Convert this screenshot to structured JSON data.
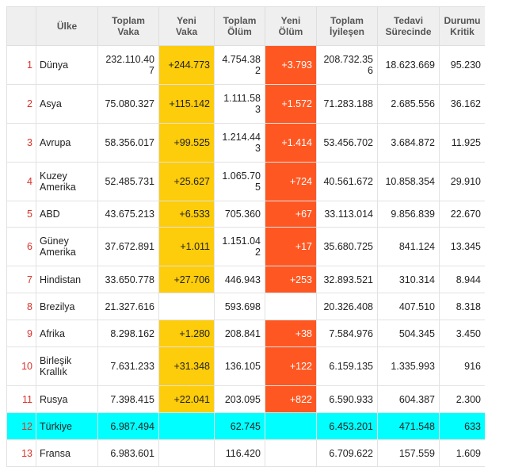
{
  "headers": {
    "country": "Ülke",
    "total_cases": [
      "Toplam",
      "Vaka"
    ],
    "new_cases": [
      "Yeni",
      "Vaka"
    ],
    "total_deaths": [
      "Toplam",
      "Ölüm"
    ],
    "new_deaths": [
      "Yeni",
      "Ölüm"
    ],
    "total_recovered": [
      "Toplam",
      "İyileşen"
    ],
    "in_treatment": [
      "Tedavi",
      "Sürecinde"
    ],
    "critical": [
      "Durumu",
      "Kritik"
    ]
  },
  "rows": [
    {
      "idx": "1",
      "name": [
        "Dünya"
      ],
      "total_cases": [
        "232.110.40",
        "7"
      ],
      "new_cases": "+244.773",
      "total_deaths": [
        "4.754.38",
        "2"
      ],
      "new_deaths": "+3.793",
      "total_recovered": [
        "208.732.35",
        "6"
      ],
      "in_treatment": "18.623.669",
      "critical": "95.230"
    },
    {
      "idx": "2",
      "name": [
        "Asya"
      ],
      "total_cases": [
        "75.080.327"
      ],
      "new_cases": "+115.142",
      "total_deaths": [
        "1.111.58",
        "3"
      ],
      "new_deaths": "+1.572",
      "total_recovered": [
        "71.283.188"
      ],
      "in_treatment": "2.685.556",
      "critical": "36.162"
    },
    {
      "idx": "3",
      "name": [
        "Avrupa"
      ],
      "total_cases": [
        "58.356.017"
      ],
      "new_cases": "+99.525",
      "total_deaths": [
        "1.214.44",
        "3"
      ],
      "new_deaths": "+1.414",
      "total_recovered": [
        "53.456.702"
      ],
      "in_treatment": "3.684.872",
      "critical": "11.925"
    },
    {
      "idx": "4",
      "name": [
        "Kuzey",
        "Amerika"
      ],
      "total_cases": [
        "52.485.731"
      ],
      "new_cases": "+25.627",
      "total_deaths": [
        "1.065.70",
        "5"
      ],
      "new_deaths": "+724",
      "total_recovered": [
        "40.561.672"
      ],
      "in_treatment": "10.858.354",
      "critical": "29.910"
    },
    {
      "idx": "5",
      "name": [
        "ABD"
      ],
      "total_cases": [
        "43.675.213"
      ],
      "new_cases": "+6.533",
      "total_deaths": [
        "705.360"
      ],
      "new_deaths": "+67",
      "total_recovered": [
        "33.113.014"
      ],
      "in_treatment": "9.856.839",
      "critical": "22.670"
    },
    {
      "idx": "6",
      "name": [
        "Güney",
        "Amerika"
      ],
      "total_cases": [
        "37.672.891"
      ],
      "new_cases": "+1.011",
      "total_deaths": [
        "1.151.04",
        "2"
      ],
      "new_deaths": "+17",
      "total_recovered": [
        "35.680.725"
      ],
      "in_treatment": "841.124",
      "critical": "13.345"
    },
    {
      "idx": "7",
      "name": [
        "Hindistan"
      ],
      "total_cases": [
        "33.650.778"
      ],
      "new_cases": "+27.706",
      "total_deaths": [
        "446.943"
      ],
      "new_deaths": "+253",
      "total_recovered": [
        "32.893.521"
      ],
      "in_treatment": "310.314",
      "critical": "8.944"
    },
    {
      "idx": "8",
      "name": [
        "Brezilya"
      ],
      "total_cases": [
        "21.327.616"
      ],
      "new_cases": "",
      "total_deaths": [
        "593.698"
      ],
      "new_deaths": "",
      "total_recovered": [
        "20.326.408"
      ],
      "in_treatment": "407.510",
      "critical": "8.318"
    },
    {
      "idx": "9",
      "name": [
        "Afrika"
      ],
      "total_cases": [
        "8.298.162"
      ],
      "new_cases": "+1.280",
      "total_deaths": [
        "208.841"
      ],
      "new_deaths": "+38",
      "total_recovered": [
        "7.584.976"
      ],
      "in_treatment": "504.345",
      "critical": "3.450"
    },
    {
      "idx": "10",
      "name": [
        "Birleşik",
        "Krallık"
      ],
      "total_cases": [
        "7.631.233"
      ],
      "new_cases": "+31.348",
      "total_deaths": [
        "136.105"
      ],
      "new_deaths": "+122",
      "total_recovered": [
        "6.159.135"
      ],
      "in_treatment": "1.335.993",
      "critical": "916"
    },
    {
      "idx": "11",
      "name": [
        "Rusya"
      ],
      "total_cases": [
        "7.398.415"
      ],
      "new_cases": "+22.041",
      "total_deaths": [
        "203.095"
      ],
      "new_deaths": "+822",
      "total_recovered": [
        "6.590.933"
      ],
      "in_treatment": "604.387",
      "critical": "2.300"
    },
    {
      "idx": "12",
      "name": [
        "Türkiye"
      ],
      "total_cases": [
        "6.987.494"
      ],
      "new_cases": "",
      "total_deaths": [
        "62.745"
      ],
      "new_deaths": "",
      "total_recovered": [
        "6.453.201"
      ],
      "in_treatment": "471.548",
      "critical": "633"
    },
    {
      "idx": "13",
      "name": [
        "Fransa"
      ],
      "total_cases": [
        "6.983.601"
      ],
      "new_cases": "",
      "total_deaths": [
        "116.420"
      ],
      "new_deaths": "",
      "total_recovered": [
        "6.709.622"
      ],
      "in_treatment": "157.559",
      "critical": "1.609"
    }
  ],
  "colors": {
    "new_cases_bg": "#fdcc0a",
    "new_deaths_bg": "#fe5722",
    "highlight_row_bg": "#00ffff",
    "index_text": "#d9332b"
  }
}
